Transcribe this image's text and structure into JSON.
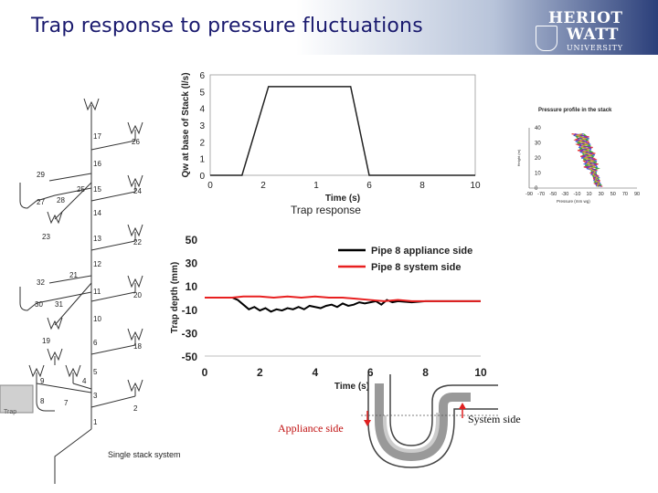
{
  "title": "Trap response to pressure fluctuations",
  "logo": {
    "line1": "HERIOT",
    "line2": "WATT",
    "line3": "UNIVERSITY"
  },
  "stack": {
    "caption": "Single stack system",
    "trap_label": "Trap",
    "node_labels": [
      "1",
      "2",
      "3",
      "4",
      "5",
      "6",
      "7",
      "8",
      "9",
      "10",
      "11",
      "12",
      "13",
      "14",
      "15",
      "16",
      "17",
      "18",
      "19",
      "20",
      "21",
      "22",
      "23",
      "24",
      "25",
      "26",
      "27",
      "28",
      "29",
      "30",
      "31",
      "32"
    ]
  },
  "chart_data": [
    {
      "type": "line",
      "title": "",
      "xlabel": "Time (s)",
      "ylabel": "Qw at base of Stack (l/s)",
      "xlim": [
        0,
        10
      ],
      "ylim": [
        0,
        6
      ],
      "x_ticks": [
        "0",
        "2",
        "1",
        "6",
        "8",
        "10"
      ],
      "y_ticks": [
        "0",
        "1",
        "2",
        "3",
        "4",
        "5",
        "6"
      ],
      "series": [
        {
          "x": [
            0,
            1.2,
            2.2,
            5.3,
            6.0,
            10
          ],
          "y": [
            0,
            0,
            5.3,
            5.3,
            0,
            0
          ]
        }
      ],
      "grid": false
    },
    {
      "type": "line",
      "title": "Trap response",
      "xlabel": "Time (s)",
      "ylabel": "Trap depth (mm)",
      "xlim": [
        0,
        10
      ],
      "ylim": [
        -50,
        50
      ],
      "x_ticks": [
        "0",
        "2",
        "4",
        "6",
        "8",
        "10"
      ],
      "y_ticks": [
        "50",
        "30",
        "10",
        "-10",
        "-30",
        "-50"
      ],
      "legend": "top-right",
      "series": [
        {
          "name": "Pipe 8 appliance side",
          "color": "#000000",
          "x": [
            0,
            1.0,
            1.2,
            1.4,
            1.6,
            1.8,
            2.0,
            2.2,
            2.4,
            2.6,
            2.8,
            3.0,
            3.2,
            3.4,
            3.6,
            3.8,
            4.0,
            4.2,
            4.4,
            4.6,
            4.8,
            5.0,
            5.2,
            5.4,
            5.6,
            5.8,
            6.0,
            6.2,
            6.4,
            6.6,
            6.8,
            7.0,
            7.5,
            8.0,
            8.5,
            9.0,
            9.5,
            10
          ],
          "y": [
            0,
            0,
            -2,
            -6,
            -10,
            -8,
            -11,
            -9,
            -12,
            -10,
            -11,
            -9,
            -10,
            -8,
            -10,
            -7,
            -8,
            -9,
            -7,
            -6,
            -8,
            -5,
            -7,
            -6,
            -4,
            -5,
            -4,
            -3,
            -6,
            -2,
            -4,
            -3,
            -4,
            -3,
            -3,
            -3,
            -3,
            -3
          ]
        },
        {
          "name": "Pipe 8 system side",
          "color": "#e82020",
          "x": [
            0,
            1.0,
            1.4,
            2.0,
            2.5,
            3.0,
            3.5,
            4.0,
            4.5,
            5.0,
            5.5,
            6.0,
            6.5,
            7.0,
            7.5,
            8.0,
            9.0,
            10
          ],
          "y": [
            0,
            0,
            1,
            1,
            0,
            1,
            0,
            1,
            0,
            0,
            -1,
            -2,
            -3,
            -2,
            -3,
            -3,
            -3,
            -3
          ]
        }
      ]
    },
    {
      "type": "scatter",
      "title": "Pressure profile in the stack",
      "xlabel": "Pressure (mm wg)",
      "ylabel": "Height (m)",
      "xlim": [
        -90,
        90
      ],
      "ylim": [
        0,
        40
      ],
      "x_ticks": [
        "-90",
        "-70",
        "-50",
        "-30",
        "-10",
        "10",
        "30",
        "50",
        "70",
        "90"
      ],
      "y_ticks": [
        "0",
        "10",
        "20",
        "30",
        "40"
      ]
    }
  ],
  "annotations": {
    "appliance_side": "Appliance side",
    "system_side": "System side"
  }
}
